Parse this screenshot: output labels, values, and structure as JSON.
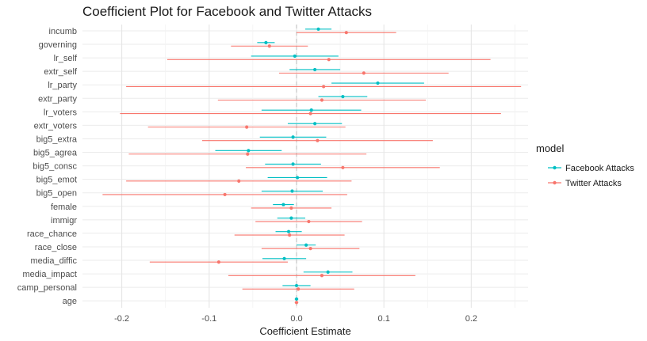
{
  "chart_data": {
    "type": "scatter",
    "title": "Coefficient Plot for Facebook and Twitter Attacks",
    "xlabel": "Coefficient Estimate",
    "ylabel": "",
    "xlim": [
      -0.245,
      0.265
    ],
    "xticks": [
      -0.2,
      -0.1,
      0.0,
      0.1,
      0.2
    ],
    "xtick_labels": [
      "-0.2",
      "-0.1",
      "0.0",
      "0.1",
      "0.2"
    ],
    "reference_line": 0,
    "grid": true,
    "legend_title": "model",
    "legend_position": "right",
    "categories": [
      "incumb",
      "governing",
      "lr_self",
      "extr_self",
      "lr_party",
      "extr_party",
      "lr_voters",
      "extr_voters",
      "big5_extra",
      "big5_agrea",
      "big5_consc",
      "big5_emot",
      "big5_open",
      "female",
      "immigr",
      "race_chance",
      "race_close",
      "media_diffic",
      "media_impact",
      "camp_personal",
      "age"
    ],
    "series": [
      {
        "name": "Facebook Attacks",
        "color": "#00BFC4",
        "estimate": [
          0.025,
          -0.035,
          -0.002,
          0.021,
          0.093,
          0.053,
          0.017,
          0.021,
          -0.004,
          -0.055,
          -0.004,
          0.001,
          -0.005,
          -0.015,
          -0.006,
          -0.009,
          0.011,
          -0.014,
          0.036,
          0.0,
          0.0
        ],
        "lower": [
          0.01,
          -0.045,
          -0.052,
          -0.008,
          0.04,
          0.025,
          -0.04,
          -0.01,
          -0.042,
          -0.093,
          -0.036,
          -0.033,
          -0.04,
          -0.027,
          -0.022,
          -0.024,
          0.0,
          -0.039,
          0.008,
          -0.016,
          -0.002
        ],
        "upper": [
          0.04,
          -0.025,
          0.048,
          0.05,
          0.146,
          0.081,
          0.074,
          0.052,
          0.034,
          -0.017,
          0.028,
          0.035,
          0.03,
          -0.003,
          0.01,
          0.006,
          0.022,
          0.011,
          0.064,
          0.016,
          0.002
        ]
      },
      {
        "name": "Twitter Attacks",
        "color": "#F8766D",
        "estimate": [
          0.057,
          -0.031,
          0.037,
          0.077,
          0.031,
          0.029,
          0.016,
          -0.057,
          0.024,
          -0.056,
          0.053,
          -0.066,
          -0.082,
          -0.006,
          0.014,
          -0.008,
          0.016,
          -0.089,
          0.029,
          0.002,
          0.0
        ],
        "lower": [
          0.0,
          -0.075,
          -0.148,
          -0.02,
          -0.195,
          -0.09,
          -0.202,
          -0.17,
          -0.108,
          -0.192,
          -0.058,
          -0.195,
          -0.222,
          -0.052,
          -0.047,
          -0.071,
          -0.04,
          -0.168,
          -0.078,
          -0.062,
          -0.002
        ],
        "upper": [
          0.114,
          0.013,
          0.222,
          0.174,
          0.257,
          0.148,
          0.234,
          0.056,
          0.156,
          0.08,
          0.164,
          0.063,
          0.058,
          0.04,
          0.075,
          0.055,
          0.072,
          -0.01,
          0.136,
          0.066,
          0.002
        ]
      }
    ]
  }
}
